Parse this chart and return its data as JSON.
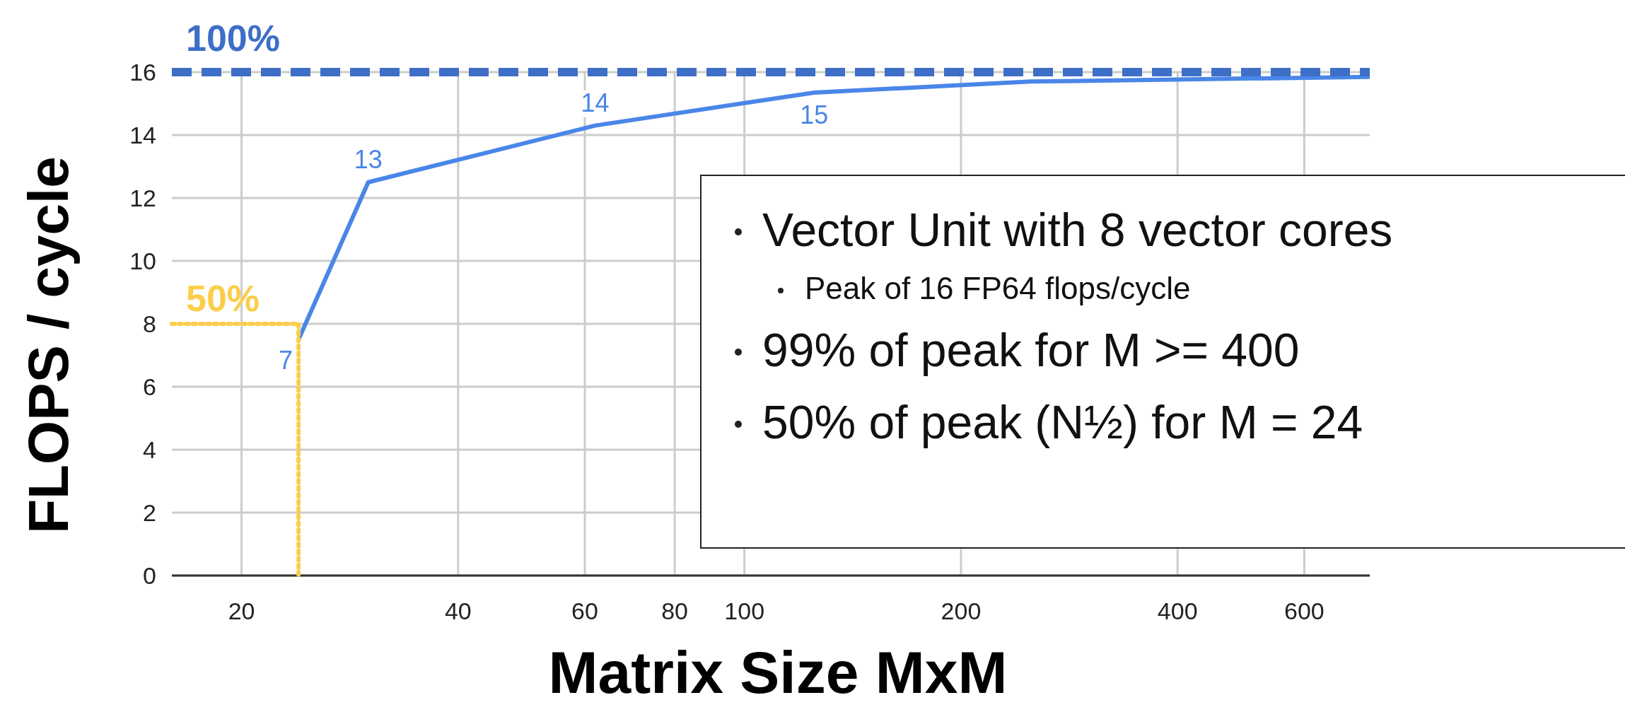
{
  "chart_data": {
    "type": "line",
    "xlabel": "Matrix Size MxM",
    "ylabel": "FLOPS / cycle",
    "log": "x",
    "xlim": [
      16,
      740
    ],
    "xticks": [
      20,
      40,
      60,
      80,
      100,
      200,
      400,
      600
    ],
    "ylim": [
      0,
      16
    ],
    "yticks": [
      0,
      2,
      4,
      6,
      8,
      10,
      12,
      14,
      16
    ],
    "grid": true,
    "series": [
      {
        "color": "#4a86e8",
        "x": [
          24,
          30,
          62,
          125,
          250,
          740
        ],
        "values": [
          7.5,
          12.5,
          14.3,
          15.35,
          15.7,
          15.85
        ],
        "value_labels": [
          "7",
          "13",
          "14",
          "15",
          null,
          null
        ],
        "line_style": "solid"
      },
      {
        "color": "#fbcd4a",
        "x": [
          16,
          24,
          24
        ],
        "values": [
          8,
          8,
          0
        ],
        "line_style": "dotted"
      }
    ],
    "ref_lines": [
      {
        "axis": "y",
        "value": 16,
        "color": "#3d6fc7",
        "line_style": "dashed"
      }
    ],
    "annotations": [
      {
        "text": "100%",
        "x": 16,
        "y": 16
      },
      {
        "text": "50%",
        "x": 16,
        "y": 8
      },
      "Vector Unit with 8 vector cores",
      "Peak of 16 FP64 flops/cycle",
      "99% of peak for M >= 400",
      "50% of peak (N½) for M = 24"
    ]
  }
}
